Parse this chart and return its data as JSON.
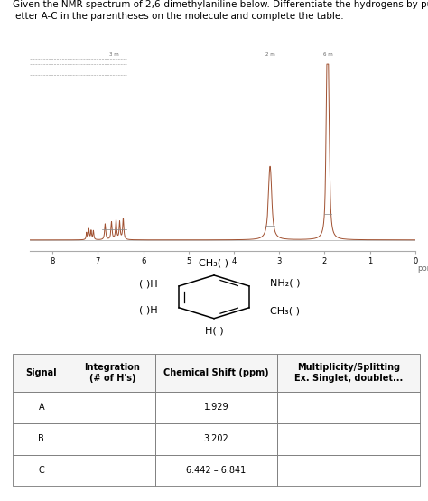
{
  "title_text": "Given the NMR spectrum of 2,6-dimethylaniline below. Differentiate the hydrogens by putting\nletter A-C in the parentheses on the molecule and complete the table.",
  "title_fontsize": 7.5,
  "bg_color": "#ffffff",
  "spectrum_color": "#a05030",
  "baseline_color": "#aaaaaa",
  "table_signal": [
    "A",
    "B",
    "C"
  ],
  "table_integration": [
    "",
    "",
    ""
  ],
  "table_chemical_shift": [
    "1.929",
    "3.202",
    "6.442 – 6.841"
  ],
  "table_multiplicity": [
    "",
    "",
    ""
  ],
  "table_headers": [
    "Signal",
    "Integration\n(# of H's)",
    "Chemical Shift (ppm)",
    "Multiplicity/Splitting\nEx. Singlet, doublet..."
  ],
  "nmr_xticks": [
    8,
    7,
    6,
    5,
    4,
    3,
    2,
    1,
    0
  ],
  "ppm_label": "ppm"
}
